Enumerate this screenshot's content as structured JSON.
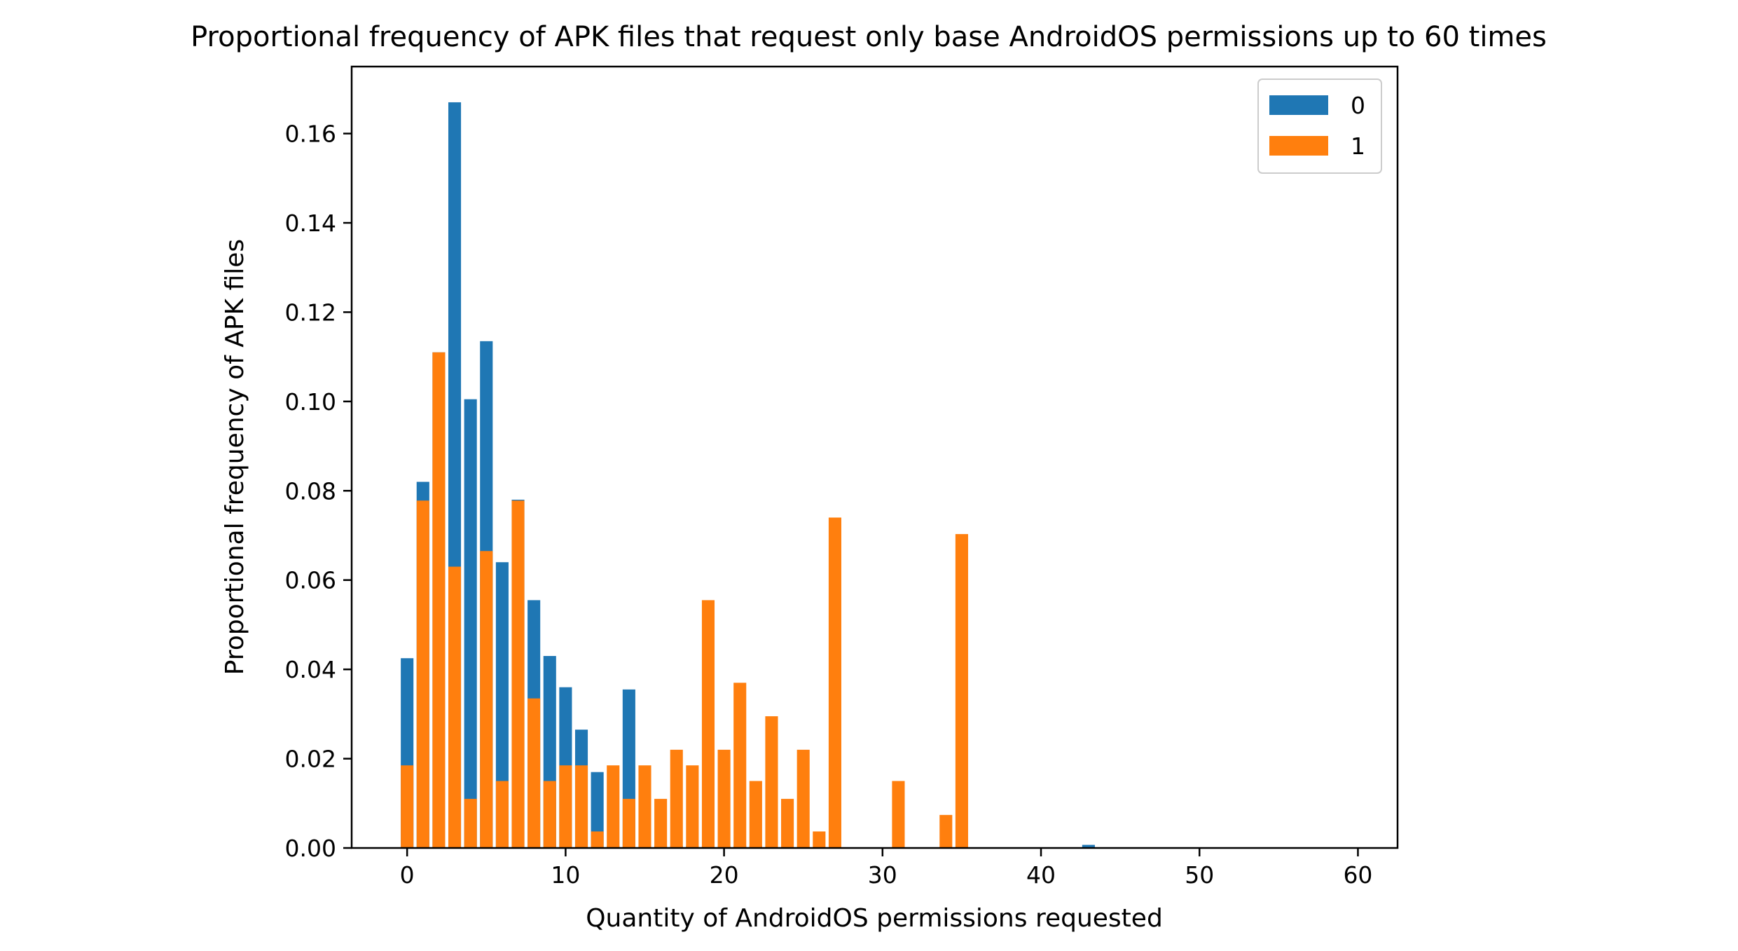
{
  "chart_data": {
    "type": "bar",
    "title": "Proportional frequency of APK files that request only base AndroidOS permissions up to 60 times",
    "xlabel": "Quantity of AndroidOS permissions requested",
    "ylabel": "Proportional frequency of APK files",
    "xlim": [
      -3.5,
      62.5
    ],
    "ylim": [
      0,
      0.175
    ],
    "xticks": [
      0,
      10,
      20,
      30,
      40,
      50,
      60
    ],
    "yticks": [
      0.0,
      0.02,
      0.04,
      0.06,
      0.08,
      0.1,
      0.12,
      0.14,
      0.16
    ],
    "ytick_labels": [
      "0.00",
      "0.02",
      "0.04",
      "0.06",
      "0.08",
      "0.10",
      "0.12",
      "0.14",
      "0.16"
    ],
    "bar_width": 0.8,
    "legend_placement": "top-right",
    "grid": false,
    "series": [
      {
        "name": "0",
        "color": "#1f77b4",
        "x": [
          0,
          1,
          2,
          3,
          4,
          5,
          6,
          7,
          8,
          9,
          10,
          11,
          12,
          13,
          14,
          15,
          16,
          17,
          18,
          19,
          20,
          21,
          22,
          23,
          24,
          25,
          26,
          27,
          28,
          29,
          30,
          31,
          32,
          33,
          34,
          35,
          36,
          37,
          38,
          39,
          40,
          41,
          42,
          43
        ],
        "values": [
          0.0425,
          0.082,
          0.111,
          0.167,
          0.1005,
          0.1135,
          0.064,
          0.078,
          0.0555,
          0.043,
          0.036,
          0.0265,
          0.017,
          0.0005,
          0.0355,
          0.0005,
          0.0005,
          0.0005,
          0.0005,
          0.0005,
          0.0005,
          0.0005,
          0.0005,
          0,
          0,
          0,
          0,
          0,
          0,
          0,
          0,
          0,
          0,
          0,
          0,
          0,
          0,
          0,
          0,
          0,
          0,
          0,
          0,
          0.0007
        ]
      },
      {
        "name": "1",
        "color": "#ff7f0e",
        "x": [
          0,
          1,
          2,
          3,
          4,
          5,
          6,
          7,
          8,
          9,
          10,
          11,
          12,
          13,
          14,
          15,
          16,
          17,
          18,
          19,
          20,
          21,
          22,
          23,
          24,
          25,
          26,
          27,
          31,
          34,
          35
        ],
        "values": [
          0.0185,
          0.0778,
          0.111,
          0.063,
          0.011,
          0.0665,
          0.015,
          0.0778,
          0.0335,
          0.015,
          0.0185,
          0.0185,
          0.0037,
          0.0185,
          0.011,
          0.0185,
          0.011,
          0.022,
          0.0185,
          0.0555,
          0.022,
          0.037,
          0.015,
          0.0295,
          0.011,
          0.022,
          0.0037,
          0.074,
          0.015,
          0.0074,
          0.0703
        ]
      }
    ]
  }
}
